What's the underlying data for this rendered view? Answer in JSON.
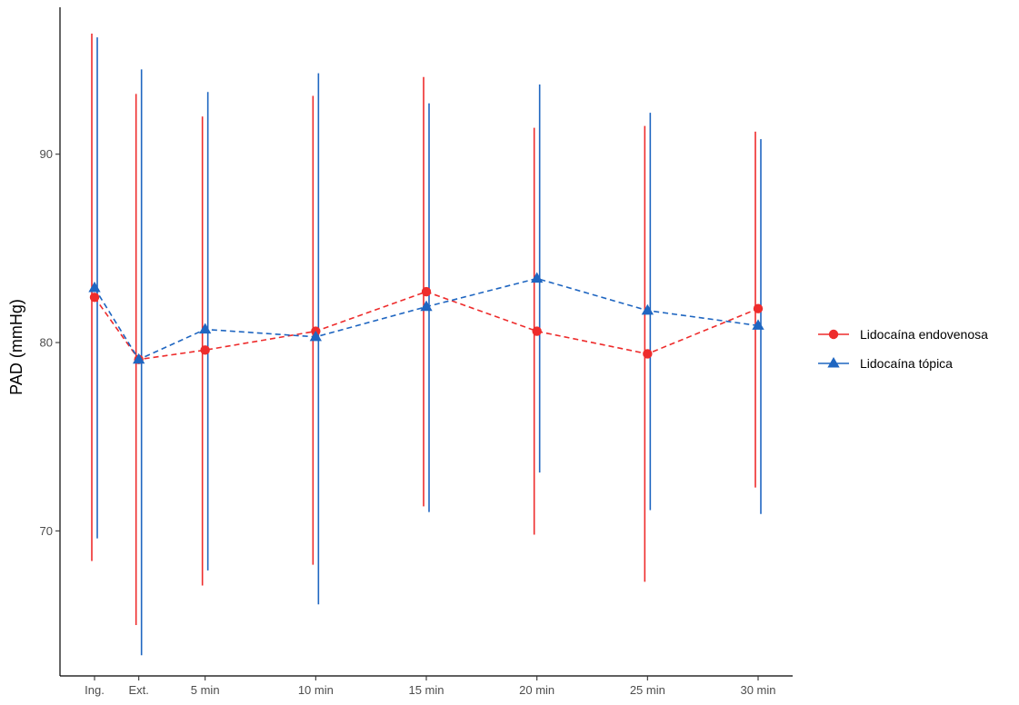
{
  "chart_data": {
    "type": "line",
    "title": "",
    "xlabel": "",
    "ylabel": "PAD (mmHg)",
    "categories": [
      "Ing.",
      "Ext.",
      "5 min",
      "10 min",
      "15 min",
      "20 min",
      "25 min",
      "30 min"
    ],
    "x": [
      0,
      1,
      2.5,
      5,
      7.5,
      10,
      12.5,
      15
    ],
    "ylim": [
      62.3,
      97.8
    ],
    "yticks": [
      70,
      80,
      90
    ],
    "grid": false,
    "legend_position": "right",
    "series": [
      {
        "name": "Lidocaína endovenosa",
        "color": "#ee2c2c",
        "marker": "circle",
        "values": [
          82.4,
          79.1,
          79.6,
          80.6,
          82.7,
          80.6,
          79.4,
          81.8
        ],
        "lower": [
          68.4,
          65.0,
          67.1,
          68.2,
          71.3,
          69.8,
          67.3,
          72.3
        ],
        "upper": [
          96.4,
          93.2,
          92.0,
          93.1,
          94.1,
          91.4,
          91.5,
          91.2
        ]
      },
      {
        "name": "Lidocaína tópica",
        "color": "#1f66c1",
        "marker": "triangle",
        "values": [
          82.9,
          79.1,
          80.7,
          80.3,
          81.9,
          83.4,
          81.7,
          80.9
        ],
        "lower": [
          69.6,
          63.4,
          67.9,
          66.1,
          71.0,
          73.1,
          71.1,
          70.9
        ],
        "upper": [
          96.2,
          94.5,
          93.3,
          94.3,
          92.7,
          93.7,
          92.2,
          90.8
        ]
      }
    ]
  }
}
